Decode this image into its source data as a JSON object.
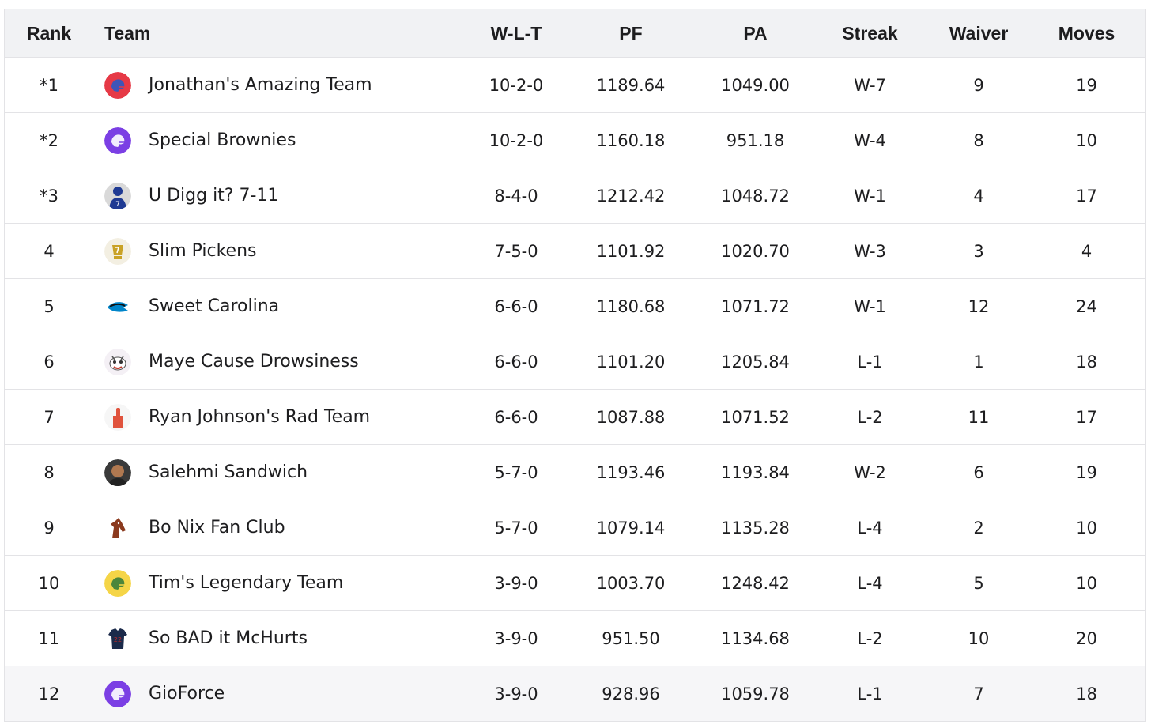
{
  "headers": {
    "rank": "Rank",
    "team": "Team",
    "wlt": "W-L-T",
    "pf": "PF",
    "pa": "PA",
    "streak": "Streak",
    "waiver": "Waiver",
    "moves": "Moves"
  },
  "teams": [
    {
      "rank": "*1",
      "name": "Jonathan's Amazing Team",
      "wlt": "10-2-0",
      "pf": "1189.64",
      "pa": "1049.00",
      "streak": "W-7",
      "waiver": "9",
      "moves": "19",
      "logo_icon": "helmet-icon",
      "logo_color": "#e63946",
      "logo_accent": "#2b59c3"
    },
    {
      "rank": "*2",
      "name": "Special Brownies",
      "wlt": "10-2-0",
      "pf": "1160.18",
      "pa": "951.18",
      "streak": "W-4",
      "waiver": "8",
      "moves": "10",
      "logo_icon": "helmet-icon",
      "logo_color": "#7b3fe4",
      "logo_accent": "#ffffff"
    },
    {
      "rank": "*3",
      "name": "U Digg it? 7-11",
      "wlt": "8-4-0",
      "pf": "1212.42",
      "pa": "1048.72",
      "streak": "W-1",
      "waiver": "4",
      "moves": "17",
      "logo_icon": "player-icon",
      "logo_color": "#1f3a93",
      "logo_accent": "#d9d9d9"
    },
    {
      "rank": "4",
      "name": "Slim Pickens",
      "wlt": "7-5-0",
      "pf": "1101.92",
      "pa": "1020.70",
      "streak": "W-3",
      "waiver": "3",
      "moves": "4",
      "logo_icon": "trophy-icon",
      "logo_color": "#f3efe2",
      "logo_accent": "#c9a227"
    },
    {
      "rank": "5",
      "name": "Sweet Carolina",
      "wlt": "6-6-0",
      "pf": "1180.68",
      "pa": "1071.72",
      "streak": "W-1",
      "waiver": "12",
      "moves": "24",
      "logo_icon": "panther-icon",
      "logo_color": "#ffffff",
      "logo_accent": "#0085ca"
    },
    {
      "rank": "6",
      "name": "Maye Cause Drowsiness",
      "wlt": "6-6-0",
      "pf": "1101.20",
      "pa": "1205.84",
      "streak": "L-1",
      "waiver": "1",
      "moves": "18",
      "logo_icon": "cartoon-icon",
      "logo_color": "#f4f0f5",
      "logo_accent": "#c0392b"
    },
    {
      "rank": "7",
      "name": "Ryan Johnson's Rad Team",
      "wlt": "6-6-0",
      "pf": "1087.88",
      "pa": "1071.52",
      "streak": "L-2",
      "waiver": "11",
      "moves": "17",
      "logo_icon": "foam-finger-icon",
      "logo_color": "#f6f6f6",
      "logo_accent": "#e0533d"
    },
    {
      "rank": "8",
      "name": "Salehmi Sandwich",
      "wlt": "5-7-0",
      "pf": "1193.46",
      "pa": "1193.84",
      "streak": "W-2",
      "waiver": "6",
      "moves": "19",
      "logo_icon": "avatar-photo-icon",
      "logo_color": "#3a3a3a",
      "logo_accent": "#b07850"
    },
    {
      "rank": "9",
      "name": "Bo Nix Fan Club",
      "wlt": "5-7-0",
      "pf": "1079.14",
      "pa": "1135.28",
      "streak": "L-4",
      "waiver": "2",
      "moves": "10",
      "logo_icon": "horse-icon",
      "logo_color": "#ffffff",
      "logo_accent": "#8b3a1e"
    },
    {
      "rank": "10",
      "name": "Tim's Legendary Team",
      "wlt": "3-9-0",
      "pf": "1003.70",
      "pa": "1248.42",
      "streak": "L-4",
      "waiver": "5",
      "moves": "10",
      "logo_icon": "helmet-icon",
      "logo_color": "#f5d547",
      "logo_accent": "#3a7d3a"
    },
    {
      "rank": "11",
      "name": "So BAD it McHurts",
      "wlt": "3-9-0",
      "pf": "951.50",
      "pa": "1134.68",
      "streak": "L-2",
      "waiver": "10",
      "moves": "20",
      "logo_icon": "jersey-icon",
      "logo_color": "#ffffff",
      "logo_accent": "#1b2a4a"
    },
    {
      "rank": "12",
      "name": "GioForce",
      "wlt": "3-9-0",
      "pf": "928.96",
      "pa": "1059.78",
      "streak": "L-1",
      "waiver": "7",
      "moves": "18",
      "logo_icon": "helmet-icon",
      "logo_color": "#7b3fe4",
      "logo_accent": "#ffffff"
    }
  ]
}
